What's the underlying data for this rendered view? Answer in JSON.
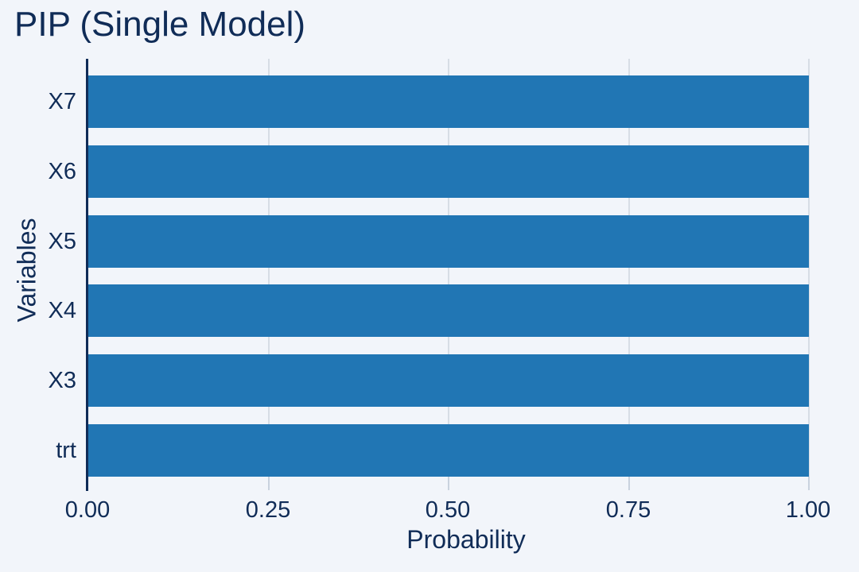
{
  "chart": {
    "title": "PIP (Single Model)",
    "xlabel": "Probability",
    "ylabel": "Variables"
  },
  "chart_data": {
    "type": "bar",
    "orientation": "horizontal",
    "title": "PIP (Single Model)",
    "xlabel": "Probability",
    "ylabel": "Variables",
    "categories_top_to_bottom": [
      "X7",
      "X6",
      "X5",
      "X4",
      "X3",
      "trt"
    ],
    "categories": [
      "X7",
      "X6",
      "X5",
      "X4",
      "X3",
      "trt"
    ],
    "values": [
      1.0,
      1.0,
      1.0,
      1.0,
      1.0,
      1.0
    ],
    "xlim": [
      0,
      1
    ],
    "xticks": [
      0,
      0.25,
      0.5,
      0.75,
      1
    ],
    "xtick_labels": [
      "0.00",
      "0.25",
      "0.50",
      "0.75",
      "1.00"
    ],
    "grid": "vertical-only",
    "legend": false,
    "colors": {
      "bar": "#2176b4",
      "background": "#f2f5fa",
      "text_and_axis": "#102c57",
      "gridline": "#d7dde5",
      "tick": "#c9d2de"
    }
  }
}
